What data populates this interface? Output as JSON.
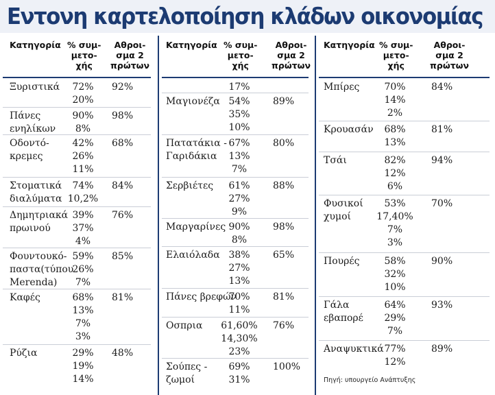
{
  "title": "Εντονη καρτελοποίηση κλάδων οικονομίας",
  "headers": {
    "category": "Κατηγορία",
    "share": [
      "% συμ-",
      "μετο-",
      "χής"
    ],
    "sum": [
      "Αθροι-",
      "σμα 2",
      "πρώτων"
    ]
  },
  "columns": [
    {
      "rows": [
        {
          "name": [
            "Ξυριστικά"
          ],
          "shares": [
            "72%",
            "20%"
          ],
          "sum": "92%"
        },
        {
          "name": [
            "Πάνες",
            "ενηλίκων"
          ],
          "shares": [
            "90%",
            "8%"
          ],
          "sum": "98%"
        },
        {
          "name": [
            "Οδοντό-",
            "κρεμες"
          ],
          "shares": [
            "42%",
            "26%",
            "11%"
          ],
          "sum": "68%"
        },
        {
          "name": [
            "Στοματικά",
            "διαλύματα"
          ],
          "shares": [
            "74%",
            "10,2%"
          ],
          "sum": "84%"
        },
        {
          "name": [
            "Δημητριακά",
            "πρωινού"
          ],
          "shares": [
            "39%",
            "37%",
            "4%"
          ],
          "sum": "76%"
        },
        {
          "name": [
            "Φουντουκό-",
            "παστα(τύπου",
            "Merenda)"
          ],
          "shares": [
            "59%",
            "26%",
            "7%"
          ],
          "sum": "85%"
        },
        {
          "name": [
            "Καφές"
          ],
          "shares": [
            "68%",
            "13%",
            "7%",
            "3%"
          ],
          "sum": "81%"
        },
        {
          "name": [
            "Ρύζια"
          ],
          "shares": [
            "29%",
            "19%",
            "14%"
          ],
          "sum": "48%"
        }
      ]
    },
    {
      "rows": [
        {
          "name": [],
          "shares": [
            "17%"
          ],
          "sum": ""
        },
        {
          "name": [
            "Μαγιονέζα"
          ],
          "shares": [
            "54%",
            "35%",
            "10%"
          ],
          "sum": "89%"
        },
        {
          "name": [
            "Πατατάκια -",
            "Γαριδάκια"
          ],
          "shares": [
            "67%",
            "13%",
            "7%"
          ],
          "sum": "80%"
        },
        {
          "name": [
            "Σερβιέτες"
          ],
          "shares": [
            "61%",
            "27%",
            "9%"
          ],
          "sum": "88%"
        },
        {
          "name": [
            "Μαργαρίνες"
          ],
          "shares": [
            "90%",
            "8%"
          ],
          "sum": "98%"
        },
        {
          "name": [
            "Ελαιόλαδα"
          ],
          "shares": [
            "38%",
            "27%",
            "13%"
          ],
          "sum": "65%"
        },
        {
          "name": [
            "Πάνες βρεφών"
          ],
          "shares": [
            "70%",
            "11%"
          ],
          "sum": "81%"
        },
        {
          "name": [
            "Οσπρια"
          ],
          "shares": [
            "61,60%",
            "14,30%",
            "23%"
          ],
          "sum": "76%"
        },
        {
          "name": [
            "Σούπες -",
            "ζωμοί"
          ],
          "shares": [
            "69%",
            "31%"
          ],
          "sum": "100%"
        }
      ]
    },
    {
      "rows": [
        {
          "name": [
            "Μπίρες"
          ],
          "shares": [
            "70%",
            "14%",
            "2%"
          ],
          "sum": "84%"
        },
        {
          "name": [
            "Κρουασάν"
          ],
          "shares": [
            "68%",
            "13%"
          ],
          "sum": "81%"
        },
        {
          "name": [
            "Τσάι"
          ],
          "shares": [
            "82%",
            "12%",
            "6%"
          ],
          "sum": "94%"
        },
        {
          "name": [
            "Φυσικοί",
            "χυμοί"
          ],
          "shares": [
            "53%",
            "17,40%",
            "7%",
            "3%"
          ],
          "sum": "70%"
        },
        {
          "name": [
            "Πουρές"
          ],
          "shares": [
            "58%",
            "32%",
            "10%"
          ],
          "sum": "90%"
        },
        {
          "name": [
            "Γάλα",
            "εβαπορέ"
          ],
          "shares": [
            "64%",
            "29%",
            "7%"
          ],
          "sum": "93%"
        },
        {
          "name": [
            "Αναψυκτικά"
          ],
          "shares": [
            "77%",
            "12%"
          ],
          "sum": "89%"
        }
      ],
      "source": "Πηγή: υπουργείο Ανάπτυξης"
    }
  ]
}
